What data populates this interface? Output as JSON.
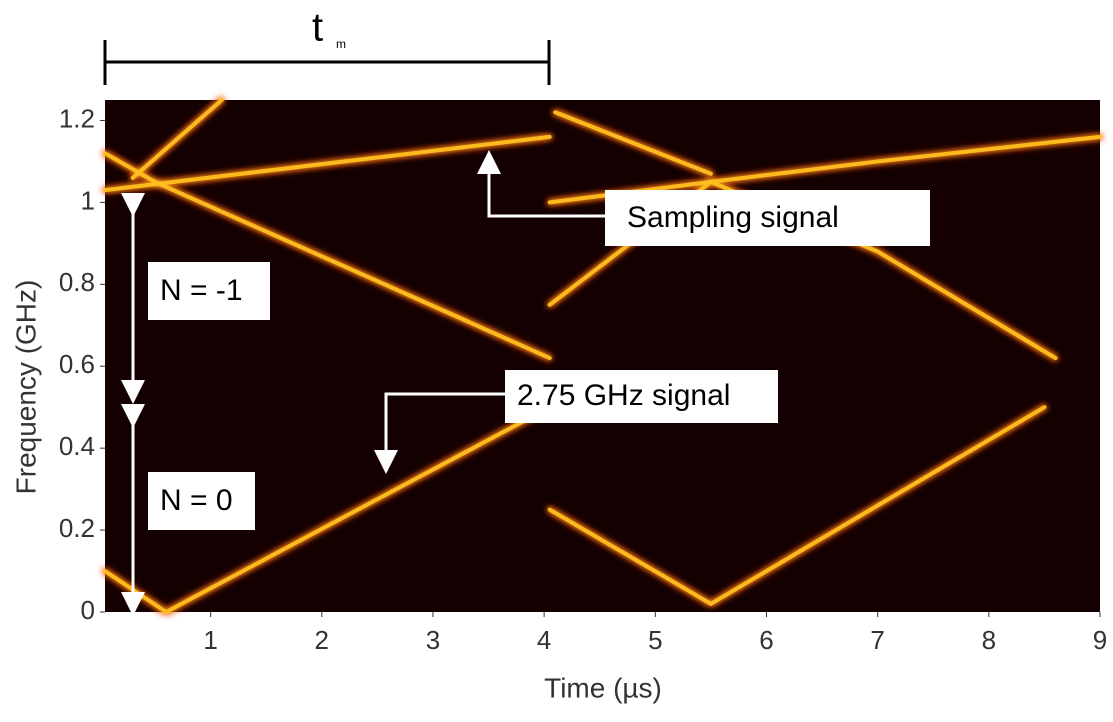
{
  "chart_data": {
    "type": "spectrogram",
    "x_label": "Time (µs)",
    "y_label": "Frequency (GHz)",
    "xlim": [
      0.05,
      9
    ],
    "ylim": [
      0,
      1.25
    ],
    "xticks": [
      1,
      2,
      3,
      4,
      5,
      6,
      7,
      8,
      9
    ],
    "yticks": [
      0,
      0.2,
      0.4,
      0.6,
      0.8,
      1,
      1.2
    ],
    "background": "#140000",
    "trace_color": "#ffc020",
    "glow_color": "#e02800",
    "traces": [
      {
        "x": [
          0.05,
          4.05
        ],
        "y": [
          1.03,
          1.16
        ]
      },
      {
        "x": [
          4.05,
          5.5,
          7,
          9
        ],
        "y": [
          1.0,
          1.05,
          1.1,
          1.16
        ]
      },
      {
        "x": [
          0.05,
          0.5,
          4.05
        ],
        "y": [
          1.12,
          1.05,
          0.62
        ]
      },
      {
        "x": [
          0.05,
          0.6,
          4.05
        ],
        "y": [
          0.1,
          0,
          0.5
        ]
      },
      {
        "x": [
          4.05,
          5.5,
          8.5
        ],
        "y": [
          0.25,
          0.02,
          0.5
        ]
      },
      {
        "x": [
          4.05,
          5.5,
          7,
          8.6
        ],
        "y": [
          0.75,
          1.05,
          0.88,
          0.62
        ]
      },
      {
        "x": [
          0.3,
          1.1
        ],
        "y": [
          1.06,
          1.25
        ]
      },
      {
        "x": [
          4.1,
          5.5
        ],
        "y": [
          1.22,
          1.07
        ]
      }
    ],
    "annotations": {
      "tm": "t",
      "tm_sub": "m",
      "sampling": "Sampling signal",
      "signal": "2.75 GHz signal",
      "n_minus_1": "N = -1",
      "n_0": "N = 0"
    }
  }
}
